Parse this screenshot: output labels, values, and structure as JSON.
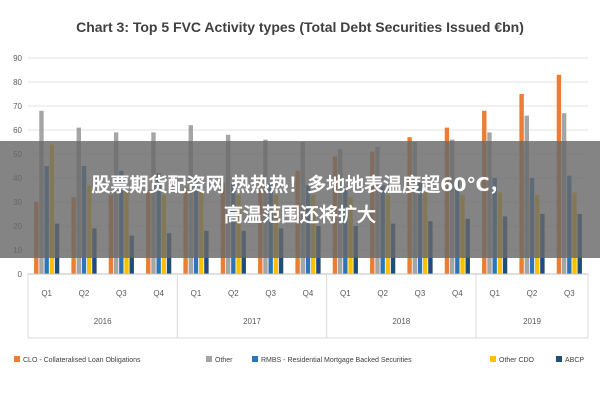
{
  "chart_data": {
    "type": "bar",
    "title": "Chart 3: Top 5 FVC Activity types (Total Debt Securities Issued €bn)",
    "xlabel": "",
    "ylabel": "",
    "ylim": [
      0,
      90
    ],
    "yticks": [
      0,
      10,
      20,
      30,
      40,
      50,
      60,
      70,
      80,
      90
    ],
    "grid": true,
    "legend_position": "bottom",
    "categories": [
      "Q1",
      "Q2",
      "Q3",
      "Q4",
      "Q1",
      "Q2",
      "Q3",
      "Q4",
      "Q1",
      "Q2",
      "Q3",
      "Q4",
      "Q1",
      "Q2",
      "Q3"
    ],
    "years": [
      {
        "label": "2016",
        "start": 0,
        "end": 3
      },
      {
        "label": "2017",
        "start": 4,
        "end": 7
      },
      {
        "label": "2018",
        "start": 8,
        "end": 11
      },
      {
        "label": "2019",
        "start": 12,
        "end": 14
      }
    ],
    "series": [
      {
        "name": "CLO - Collateralised Loan Obligations",
        "color": "#ed7d31",
        "values": [
          30,
          32,
          33,
          35,
          36,
          38,
          40,
          43,
          49,
          51,
          57,
          61,
          68,
          75,
          83
        ]
      },
      {
        "name": "Other",
        "color": "#a5a5a5",
        "values": [
          68,
          61,
          59,
          59,
          62,
          58,
          56,
          55,
          52,
          53,
          55,
          56,
          59,
          66,
          67
        ]
      },
      {
        "name": "RMBS - Residential Mortgage Backed Securities",
        "color": "#2e75b6",
        "values": [
          45,
          45,
          43,
          42,
          40,
          38,
          38,
          37,
          36,
          37,
          38,
          39,
          40,
          40,
          41
        ]
      },
      {
        "name": "Other CDO",
        "color": "#ffc000",
        "values": [
          54,
          37,
          35,
          33,
          34,
          33,
          33,
          33,
          32,
          33,
          34,
          33,
          34,
          33,
          34
        ]
      },
      {
        "name": "ABCP",
        "color": "#1f4e79",
        "values": [
          21,
          19,
          16,
          17,
          18,
          18,
          19,
          20,
          20,
          21,
          22,
          23,
          24,
          25,
          25
        ]
      }
    ]
  },
  "overlay": {
    "line1": "股票期货配资网 热热热！多地地表温度超60℃，",
    "line2": "高温范围还将扩大"
  }
}
